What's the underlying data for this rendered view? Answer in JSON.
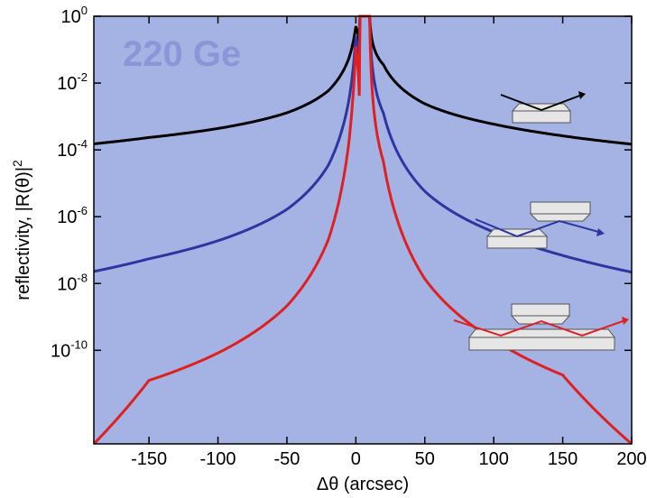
{
  "chart_data": {
    "type": "line",
    "title": "220 Ge",
    "xlabel": "Δθ (arcsec)",
    "ylabel": "reflectivity, |R(θ)|",
    "ylabel_power": "2",
    "ylog": true,
    "xlim": [
      -190,
      200
    ],
    "ylim_exp": [
      -12.8,
      0
    ],
    "x_ticks": [
      -150,
      -100,
      -50,
      0,
      50,
      100,
      150,
      200
    ],
    "x_tick_labels": [
      "-150",
      "-100",
      "-50",
      "0",
      "50",
      "100",
      "150",
      "200"
    ],
    "y_ticks": [
      {
        "base": "10",
        "exp": "0",
        "value": 0
      },
      {
        "base": "10",
        "exp": "-2",
        "value": -2
      },
      {
        "base": "10",
        "exp": "-4",
        "value": -4
      },
      {
        "base": "10",
        "exp": "-6",
        "value": -6
      },
      {
        "base": "10",
        "exp": "-8",
        "value": -8
      },
      {
        "base": "10",
        "exp": "-10",
        "value": -10
      }
    ],
    "plateau": [
      3,
      10
    ],
    "series": [
      {
        "bounces": 1,
        "color": "#000000",
        "x": [
          -190,
          -150,
          -100,
          -50,
          -20,
          -5,
          0,
          3,
          10,
          20,
          50,
          100,
          150,
          200
        ],
        "log10_y": [
          -3.82,
          -3.63,
          -3.36,
          -2.89,
          -2.23,
          -1.25,
          -0.3,
          0,
          0,
          -1.45,
          -2.62,
          -3.23,
          -3.58,
          -3.83
        ]
      },
      {
        "bounces": 2,
        "color": "#2e35a0",
        "x": [
          -190,
          -150,
          -100,
          -50,
          -20,
          -5,
          0,
          3,
          10,
          20,
          50,
          100,
          150,
          200
        ],
        "log10_y": [
          -7.64,
          -7.26,
          -6.72,
          -5.78,
          -4.46,
          -2.5,
          -0.6,
          0,
          0,
          -2.9,
          -5.24,
          -6.46,
          -7.16,
          -7.66
        ]
      },
      {
        "bounces": 3,
        "color": "#e02020",
        "x": [
          -190,
          -150,
          -100,
          -50,
          -20,
          -5,
          0,
          3,
          10,
          20,
          50,
          100,
          150,
          200
        ],
        "log10_y": [
          -12.8,
          -10.9,
          -10.08,
          -8.67,
          -6.69,
          -3.75,
          -0.9,
          0,
          0,
          -4.35,
          -7.86,
          -9.69,
          -10.74,
          -12.8
        ]
      }
    ],
    "colors": {
      "plot_background": "#a4b3e3",
      "panel_label": "#8a96d8"
    }
  }
}
